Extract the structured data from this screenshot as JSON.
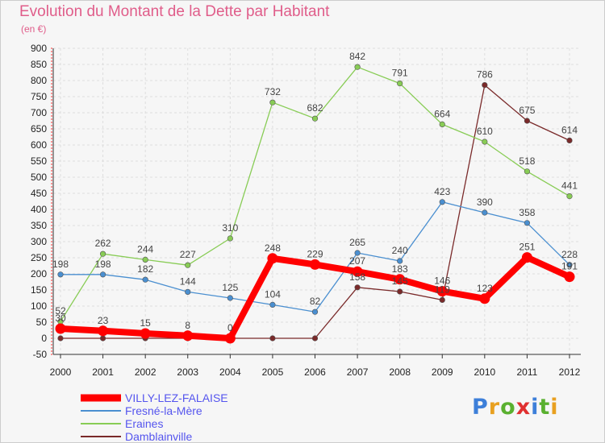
{
  "title": "Evolution du Montant de la Dette par Habitant",
  "unit": "(en €)",
  "logo_text": "Proxiti",
  "chart_data": {
    "type": "line",
    "x": [
      "2000",
      "2001",
      "2002",
      "2003",
      "2004",
      "2005",
      "2006",
      "2007",
      "2008",
      "2009",
      "2010",
      "2011",
      "2012"
    ],
    "ylim": [
      -50,
      900
    ],
    "yticks": [
      -50,
      0,
      50,
      100,
      150,
      200,
      250,
      300,
      350,
      400,
      450,
      500,
      550,
      600,
      650,
      700,
      750,
      800,
      850,
      900
    ],
    "grid": true,
    "legend_position": "bottom-left",
    "series": [
      {
        "name": "Damblainville",
        "color": "#7a2a2a",
        "values": [
          0,
          0,
          0,
          0,
          0,
          0,
          0,
          158,
          145,
          119,
          786,
          675,
          614
        ],
        "labels": [
          "",
          "",
          "",
          "",
          "",
          "",
          "",
          "158",
          "145",
          "119",
          "786",
          "675",
          "614"
        ]
      },
      {
        "name": "Eraines",
        "color": "#88cc55",
        "values": [
          52,
          262,
          244,
          227,
          310,
          732,
          682,
          842,
          791,
          664,
          610,
          518,
          441
        ],
        "labels": [
          "52",
          "262",
          "244",
          "227",
          "310",
          "732",
          "682",
          "842",
          "791",
          "664",
          "610",
          "518",
          "441"
        ]
      },
      {
        "name": "Fresné-la-Mère",
        "color": "#4a8fd0",
        "values": [
          198,
          198,
          182,
          144,
          125,
          104,
          82,
          265,
          240,
          423,
          390,
          358,
          228
        ],
        "labels": [
          "198",
          "198",
          "182",
          "144",
          "125",
          "104",
          "82",
          "265",
          "240",
          "423",
          "390",
          "358",
          "228"
        ]
      },
      {
        "name": "VILLY-LEZ-FALAISE",
        "color": "#ff0000",
        "values": [
          30,
          23,
          15,
          8,
          0,
          248,
          229,
          207,
          183,
          146,
          123,
          251,
          191
        ],
        "labels": [
          "30",
          "23",
          "15",
          "8",
          "0",
          "248",
          "229",
          "207",
          "183",
          "146",
          "123",
          "251",
          "191"
        ]
      }
    ],
    "legend": [
      {
        "name": "VILLY-LEZ-FALAISE",
        "color": "#ff0000"
      },
      {
        "name": "Fresné-la-Mère",
        "color": "#4a8fd0"
      },
      {
        "name": "Eraines",
        "color": "#88cc55"
      },
      {
        "name": "Damblainville",
        "color": "#7a2a2a"
      }
    ]
  }
}
